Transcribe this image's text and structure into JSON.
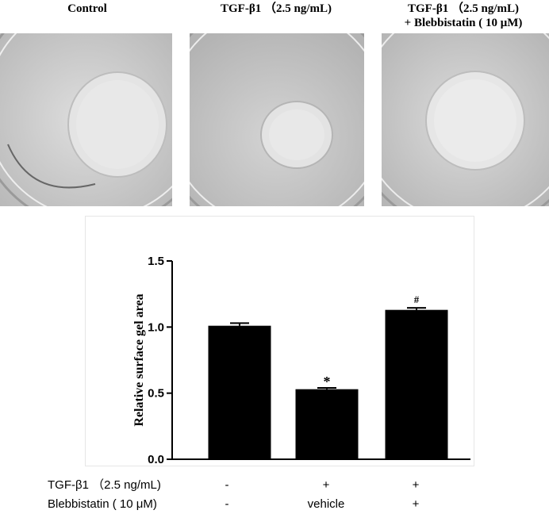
{
  "panels": [
    {
      "label": "Control"
    },
    {
      "label": "TGF-β1 （2.5 ng/mL)"
    },
    {
      "label": "TGF-β1 （2.5 ng/mL)",
      "label2": "+ Blebbistatin ( 10 μM)"
    }
  ],
  "chart_data": {
    "type": "bar",
    "categories": [
      "Control",
      "TGF-β1 + vehicle",
      "TGF-β1 + Blebbistatin"
    ],
    "values": [
      1.01,
      0.53,
      1.13
    ],
    "errors": [
      0.02,
      0.01,
      0.015
    ],
    "annotations": [
      "",
      "*",
      "#"
    ],
    "ylabel": "Relative surface gel area",
    "ylim": [
      0,
      1.5
    ],
    "yticks": [
      "0.0",
      "0.5",
      "1.0",
      "1.5"
    ],
    "bar_color": "#000000"
  },
  "treatment_table": {
    "rows": [
      {
        "label": "TGF-β1 （2.5 ng/mL)",
        "values": [
          "-",
          "+",
          "+"
        ]
      },
      {
        "label": "Blebbistatin ( 10 μM)",
        "values": [
          "-",
          "vehicle",
          "+"
        ]
      }
    ]
  }
}
